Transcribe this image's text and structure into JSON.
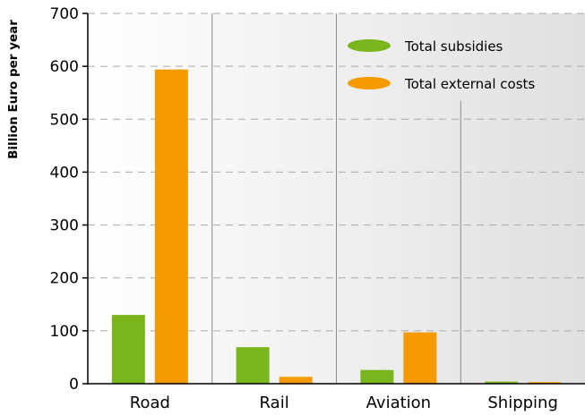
{
  "chart_data": {
    "type": "bar",
    "ylabel": "Billion Euro per year",
    "ylim": [
      0,
      700
    ],
    "yticks": [
      0,
      100,
      200,
      300,
      400,
      500,
      600,
      700
    ],
    "categories": [
      "Road",
      "Rail",
      "Aviation",
      "Shipping"
    ],
    "series": [
      {
        "name": "Total subsidies",
        "color": "#7ab51d",
        "values": [
          130,
          69,
          26,
          4
        ]
      },
      {
        "name": "Total external costs",
        "color": "#f29a00",
        "values": [
          594,
          13,
          97,
          3
        ]
      }
    ],
    "grid": true,
    "legend_position": "top-right"
  }
}
